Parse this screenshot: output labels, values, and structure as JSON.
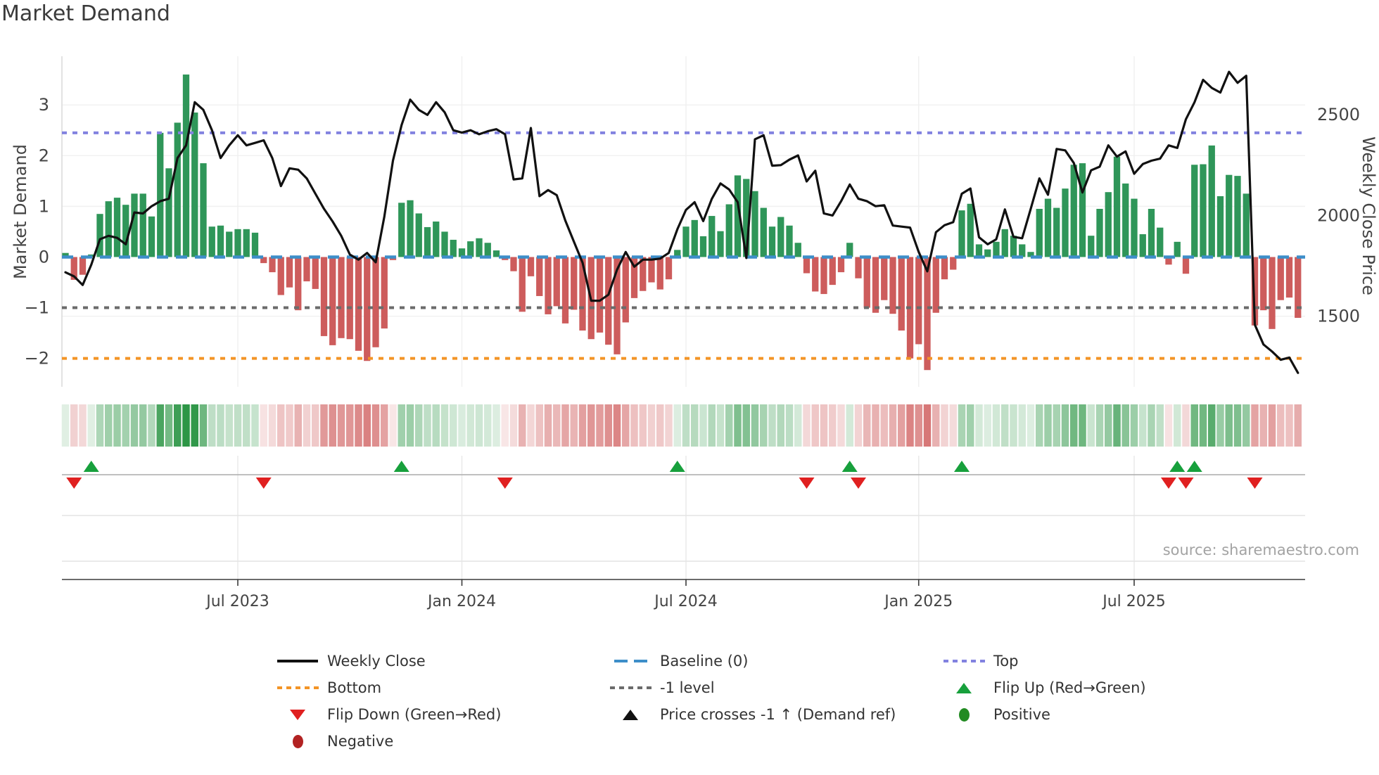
{
  "title": "Market Demand",
  "source": "source: sharemaestro.com",
  "axes": {
    "left_label": "Market Demand",
    "right_label": "Weekly Close Price",
    "left_ticks": [
      {
        "label": "3",
        "value": 3
      },
      {
        "label": "2",
        "value": 2
      },
      {
        "label": "1",
        "value": 1
      },
      {
        "label": "0",
        "value": 0
      },
      {
        "label": "−1",
        "value": -1
      },
      {
        "label": "−2",
        "value": -2
      }
    ],
    "right_ticks": [
      {
        "label": "2500",
        "value": 2500
      },
      {
        "label": "2000",
        "value": 2000
      },
      {
        "label": "1500",
        "value": 1500
      }
    ],
    "x_ticks": [
      {
        "label": "Jul 2023",
        "week": 20
      },
      {
        "label": "Jan 2024",
        "week": 46
      },
      {
        "label": "Jul 2024",
        "week": 72
      },
      {
        "label": "Jan 2025",
        "week": 99
      },
      {
        "label": "Jul 2025",
        "week": 124
      }
    ]
  },
  "chart_data": {
    "type": "bar",
    "subtype": "bar+line dual-axis with heat strip and signal markers",
    "x_unit": "week index",
    "n_weeks": 144,
    "demand_ylim": [
      -2.56,
      3.96
    ],
    "price_ylim": [
      1150,
      2790
    ],
    "ref_lines": {
      "top": 2.45,
      "baseline": 0,
      "minus1": -1,
      "bottom": -2
    },
    "demand": [
      0.08,
      -0.45,
      -0.35,
      0.05,
      0.85,
      1.1,
      1.17,
      1.03,
      1.25,
      1.25,
      0.8,
      2.45,
      1.75,
      2.65,
      3.6,
      2.85,
      1.85,
      0.6,
      0.62,
      0.5,
      0.55,
      0.55,
      0.48,
      -0.12,
      -0.3,
      -0.75,
      -0.6,
      -1.05,
      -0.48,
      -0.63,
      -1.56,
      -1.74,
      -1.6,
      -1.62,
      -1.85,
      -2.05,
      -1.78,
      -1.41,
      -0.06,
      1.07,
      1.12,
      0.86,
      0.59,
      0.7,
      0.5,
      0.34,
      0.17,
      0.31,
      0.37,
      0.28,
      0.13,
      -0.06,
      -0.28,
      -1.08,
      -0.38,
      -0.77,
      -1.13,
      -0.97,
      -1.31,
      -1.04,
      -1.45,
      -1.62,
      -1.49,
      -1.73,
      -1.92,
      -1.29,
      -0.81,
      -0.67,
      -0.5,
      -0.64,
      -0.44,
      0.14,
      0.6,
      0.73,
      0.41,
      0.81,
      0.51,
      1.04,
      1.61,
      1.54,
      1.3,
      0.97,
      0.6,
      0.79,
      0.62,
      0.28,
      -0.32,
      -0.68,
      -0.73,
      -0.55,
      -0.3,
      0.28,
      -0.42,
      -1.0,
      -1.1,
      -0.85,
      -1.12,
      -1.45,
      -2.0,
      -1.72,
      -2.23,
      -1.1,
      -0.44,
      -0.25,
      0.92,
      1.05,
      0.25,
      0.15,
      0.3,
      0.55,
      0.42,
      0.25,
      0.1,
      0.95,
      1.15,
      0.97,
      1.35,
      1.82,
      1.85,
      0.42,
      0.95,
      1.28,
      1.98,
      1.45,
      1.15,
      0.45,
      0.95,
      0.58,
      -0.15,
      0.3,
      -0.33,
      1.82,
      1.83,
      2.2,
      1.2,
      1.62,
      1.6,
      1.25,
      -1.35,
      -1.05,
      -1.42,
      -0.85,
      -0.8,
      -1.2
    ],
    "price": [
      1718,
      1698,
      1655,
      1756,
      1882,
      1899,
      1889,
      1857,
      2015,
      2010,
      2046,
      2071,
      2083,
      2285,
      2348,
      2562,
      2524,
      2423,
      2285,
      2348,
      2398,
      2348,
      2360,
      2373,
      2285,
      2146,
      2234,
      2227,
      2184,
      2108,
      2033,
      1970,
      1899,
      1806,
      1781,
      1814,
      1768,
      1995,
      2272,
      2449,
      2575,
      2524,
      2499,
      2562,
      2512,
      2423,
      2411,
      2423,
      2403,
      2418,
      2428,
      2403,
      2179,
      2184,
      2434,
      2096,
      2126,
      2101,
      1975,
      1869,
      1766,
      1577,
      1577,
      1607,
      1731,
      1819,
      1746,
      1781,
      1781,
      1786,
      1814,
      1932,
      2028,
      2066,
      1972,
      2083,
      2159,
      2129,
      2066,
      1789,
      2378,
      2398,
      2247,
      2250,
      2277,
      2298,
      2169,
      2222,
      2010,
      2000,
      2071,
      2154,
      2083,
      2071,
      2046,
      2051,
      1950,
      1945,
      1940,
      1819,
      1723,
      1917,
      1952,
      1967,
      2108,
      2134,
      1892,
      1857,
      1882,
      2030,
      1894,
      1887,
      2033,
      2184,
      2103,
      2330,
      2323,
      2260,
      2114,
      2224,
      2242,
      2348,
      2292,
      2318,
      2207,
      2255,
      2272,
      2282,
      2348,
      2335,
      2477,
      2562,
      2673,
      2633,
      2610,
      2713,
      2658,
      2693,
      1458,
      1360,
      1325,
      1284,
      1295,
      1219
    ],
    "flip_up_weeks": [
      3,
      39,
      71,
      91,
      104,
      129,
      131
    ],
    "flip_down_weeks": [
      1,
      23,
      51,
      86,
      92,
      128,
      130,
      138
    ],
    "legend_position": "bottom",
    "grid": true
  },
  "legend": {
    "items": [
      {
        "row": 0,
        "col": 0,
        "swatch": "line",
        "color_key": "price_line",
        "label": "Weekly Close"
      },
      {
        "row": 0,
        "col": 1,
        "swatch": "dashes",
        "color_key": "baseline",
        "label": "Baseline (0)"
      },
      {
        "row": 0,
        "col": 2,
        "swatch": "dots",
        "color_key": "top_line",
        "label": "Top"
      },
      {
        "row": 1,
        "col": 0,
        "swatch": "dots",
        "color_key": "bottom_line",
        "label": "Bottom"
      },
      {
        "row": 1,
        "col": 1,
        "swatch": "dots",
        "color_key": "minus1_line",
        "label": "-1 level"
      },
      {
        "row": 1,
        "col": 2,
        "swatch": "tri-up",
        "color_key": "flip_up",
        "label": "Flip Up (Red→Green)"
      },
      {
        "row": 2,
        "col": 0,
        "swatch": "tri-down",
        "color_key": "flip_down",
        "label": "Flip Down (Green→Red)"
      },
      {
        "row": 2,
        "col": 1,
        "swatch": "tri-up",
        "color_key": "price_line",
        "label": "Price crosses -1 ↑ (Demand ref)"
      },
      {
        "row": 2,
        "col": 2,
        "swatch": "circle",
        "color_key": "positive",
        "label": "Positive"
      },
      {
        "row": 3,
        "col": 0,
        "swatch": "circle",
        "color_key": "negative",
        "label": "Negative"
      }
    ]
  },
  "colors": {
    "bar_green": "#2f9659",
    "bar_red": "#cd5c5c",
    "price_line": "#111111",
    "baseline": "#3d8ec9",
    "top_line": "#8282e0",
    "minus1_line": "#6b6b6b",
    "bottom_line": "#f39426",
    "flip_up": "#17a03c",
    "flip_down": "#e02020",
    "positive": "#228b22",
    "negative": "#b22222",
    "grid": "#f0f0f0",
    "spine": "#d9d9d9",
    "signal_line": "#ababab",
    "axis_line": "#3b3b3b",
    "tick_text": "#444444",
    "heat_green_rgb": "45,150,70",
    "heat_red_rgb": "205,85,85"
  }
}
